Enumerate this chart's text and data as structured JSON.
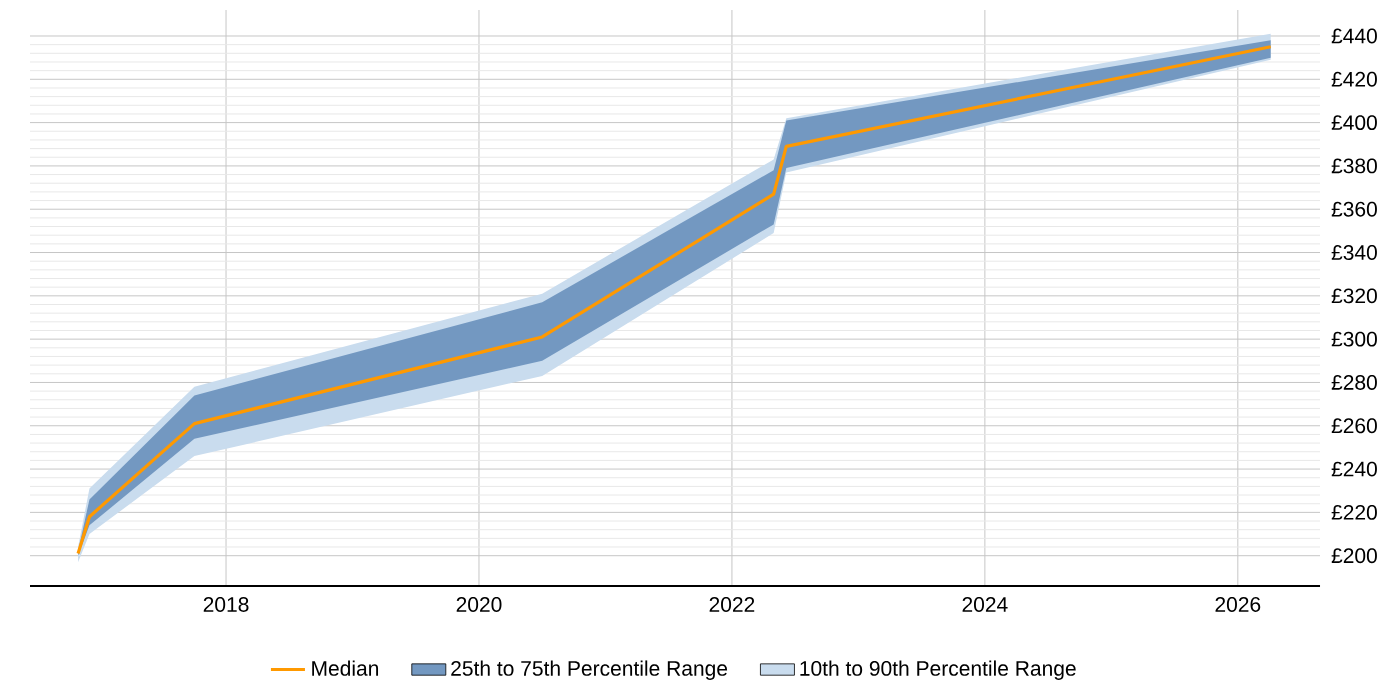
{
  "chart_data": {
    "type": "line",
    "x": [
      2016.83,
      2016.92,
      2017.75,
      2020.5,
      2022.33,
      2022.43,
      2026.26
    ],
    "series": [
      {
        "name": "Median",
        "color": "#ff9900",
        "values": [
          201,
          218,
          261,
          301,
          367,
          389,
          435
        ]
      },
      {
        "name": "25th to 75th Percentile Range",
        "color": "#7398c1",
        "values": [
          null,
          null,
          null,
          null,
          null,
          null,
          null
        ],
        "lower": [
          200,
          214,
          254,
          290,
          353,
          379,
          430
        ],
        "upper": [
          202,
          226,
          274,
          317,
          378,
          401,
          438
        ]
      },
      {
        "name": "10th to 90th Percentile Range",
        "color": "#c9dcee",
        "values": [
          null,
          null,
          null,
          null,
          null,
          null,
          null
        ],
        "lower": [
          197,
          210,
          246,
          283,
          349,
          377,
          429
        ],
        "upper": [
          204,
          231,
          278,
          321,
          383,
          402,
          441
        ]
      }
    ],
    "xlim": [
      2016.45,
      2026.65
    ],
    "ylim": [
      186,
      452
    ],
    "xticks": [
      2018,
      2020,
      2022,
      2024,
      2026
    ],
    "yticks": [
      {
        "value": 200,
        "label": "£200"
      },
      {
        "value": 220,
        "label": "£220"
      },
      {
        "value": 240,
        "label": "£240"
      },
      {
        "value": 260,
        "label": "£260"
      },
      {
        "value": 280,
        "label": "£280"
      },
      {
        "value": 300,
        "label": "£300"
      },
      {
        "value": 320,
        "label": "£320"
      },
      {
        "value": 340,
        "label": "£340"
      },
      {
        "value": 360,
        "label": "£360"
      },
      {
        "value": 380,
        "label": "£380"
      },
      {
        "value": 400,
        "label": "£400"
      },
      {
        "value": 420,
        "label": "£420"
      },
      {
        "value": 440,
        "label": "£440"
      }
    ],
    "grid": true,
    "legend": "bottom"
  }
}
